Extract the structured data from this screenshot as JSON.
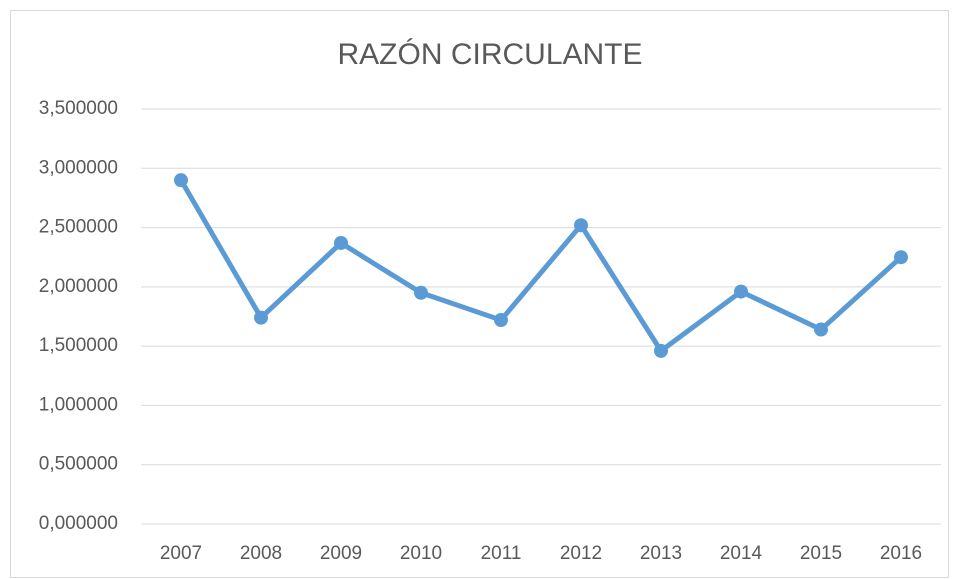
{
  "chart_data": {
    "type": "line",
    "title": "RAZÓN CIRCULANTE",
    "categories": [
      "2007",
      "2008",
      "2009",
      "2010",
      "2011",
      "2012",
      "2013",
      "2014",
      "2015",
      "2016"
    ],
    "values": [
      2.9,
      1.74,
      2.37,
      1.95,
      1.72,
      2.52,
      1.46,
      1.96,
      1.64,
      2.25
    ],
    "color": "#5b9bd5",
    "ylim": [
      0,
      3.5
    ],
    "yticks": [
      {
        "value": 0,
        "label": "0,000000"
      },
      {
        "value": 0.5,
        "label": "0,500000"
      },
      {
        "value": 1,
        "label": "1,000000"
      },
      {
        "value": 1.5,
        "label": "1,500000"
      },
      {
        "value": 2,
        "label": "2,000000"
      },
      {
        "value": 2.5,
        "label": "2,500000"
      },
      {
        "value": 3,
        "label": "3,000000"
      },
      {
        "value": 3.5,
        "label": "3,500000"
      }
    ],
    "grid": true
  }
}
